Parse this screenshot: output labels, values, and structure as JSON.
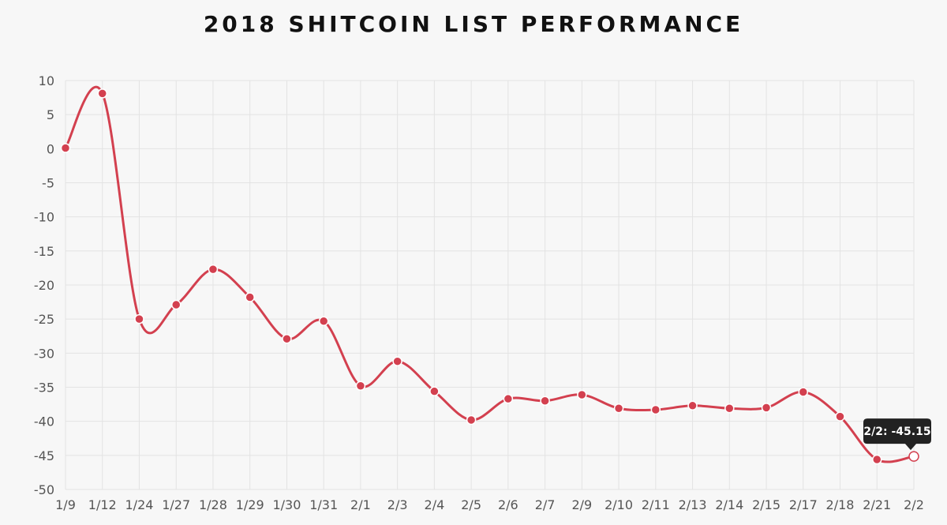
{
  "chart_data": {
    "type": "line",
    "title": "2018 SHITCOIN LIST PERFORMANCE",
    "xlabel": "",
    "ylabel": "",
    "categories": [
      "1/9",
      "1/12",
      "1/24",
      "1/27",
      "1/28",
      "1/29",
      "1/30",
      "1/31",
      "2/1",
      "2/3",
      "2/4",
      "2/5",
      "2/6",
      "2/7",
      "2/9",
      "2/10",
      "2/11",
      "2/13",
      "2/14",
      "2/15",
      "2/17",
      "2/18",
      "2/21",
      "2/2"
    ],
    "series": [
      {
        "values": [
          0.1,
          8.1,
          -25.0,
          -22.9,
          -17.7,
          -21.8,
          -27.9,
          -25.3,
          -34.8,
          -31.2,
          -35.6,
          -39.8,
          -36.7,
          -37.0,
          -36.1,
          -38.1,
          -38.3,
          -37.7,
          -38.1,
          -38.0,
          -35.7,
          -39.3,
          -45.6,
          -45.15
        ],
        "color": "#d3404f"
      }
    ],
    "ylim": [
      -50,
      10
    ],
    "yticks": [
      10,
      5,
      0,
      -5,
      -10,
      -15,
      -20,
      -25,
      -30,
      -35,
      -40,
      -45,
      -50
    ],
    "grid": true,
    "legend": "none",
    "tooltip": {
      "text": "2/2: -45.15",
      "point_index": 23
    }
  }
}
